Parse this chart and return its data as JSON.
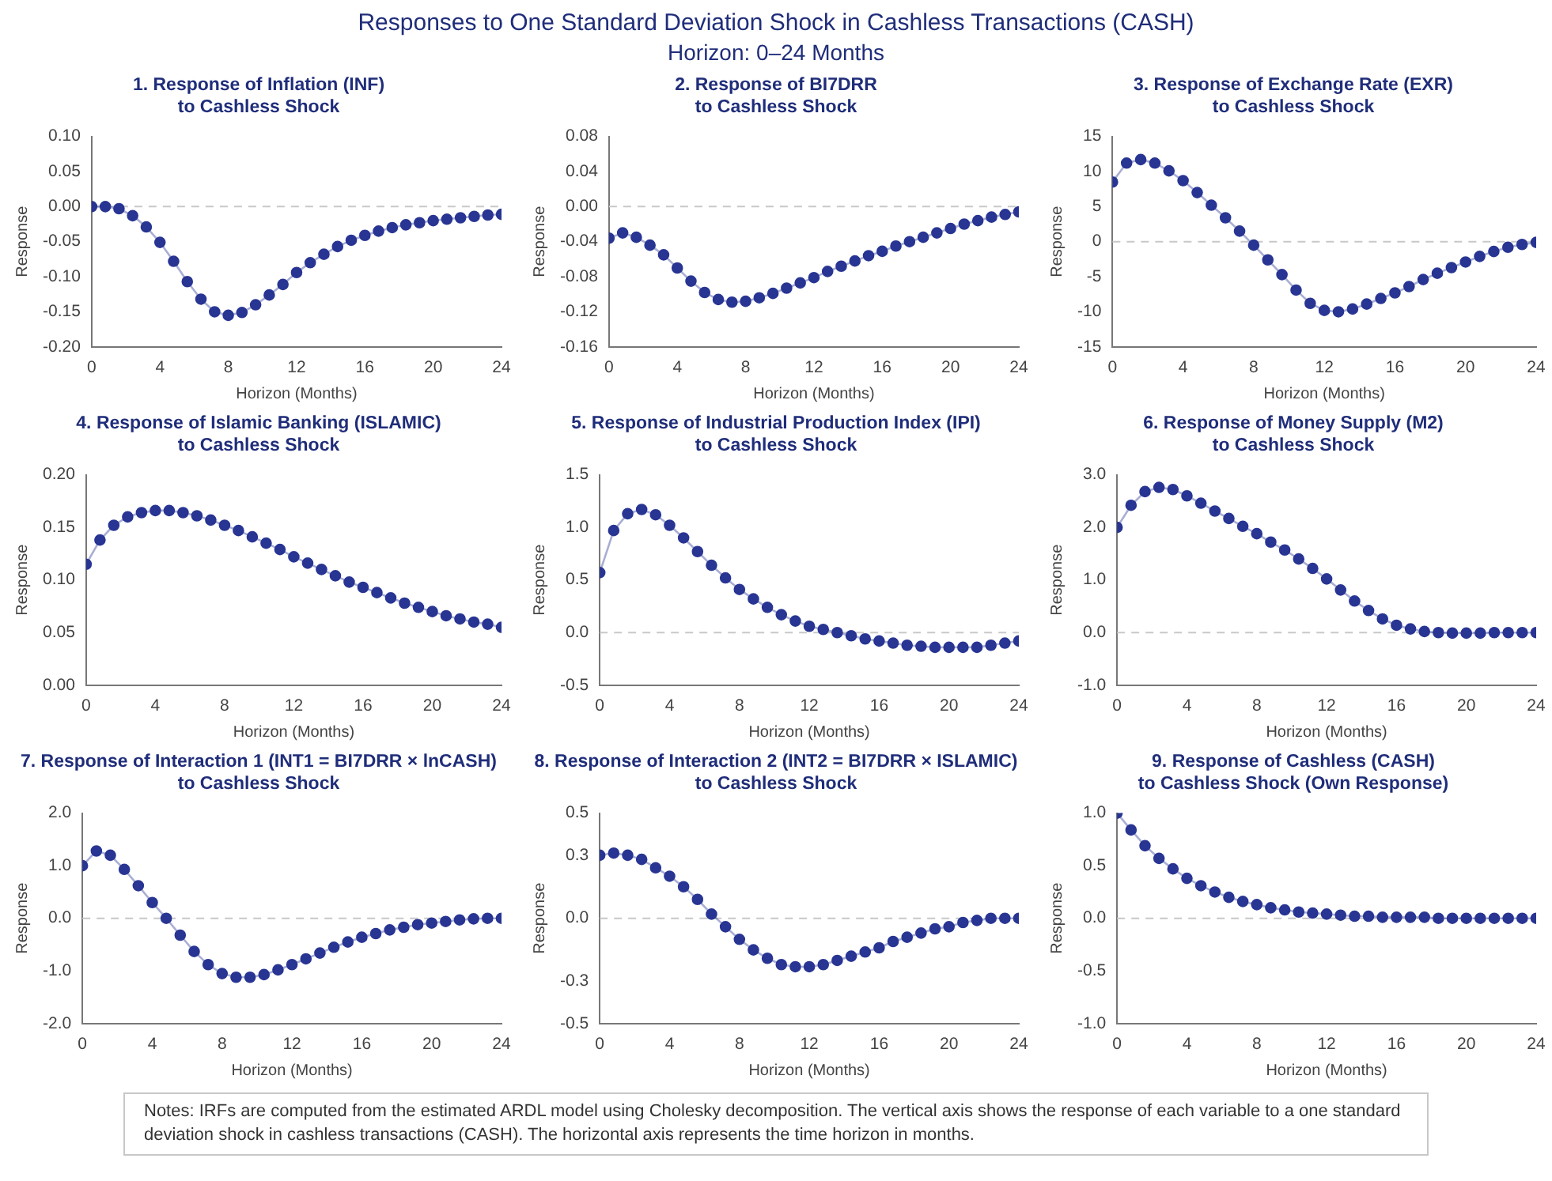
{
  "chart_data": [
    {
      "type": "other",
      "title": "Responses to One Standard Deviation Shock in Cashless Transactions (CASH)",
      "subtitle": "Horizon: 0–24 Months",
      "annotations": [
        "Notes: IRFs are computed from the estimated ARDL model using Cholesky decomposition. The vertical axis shows the response of each variable to a one standard deviation shock in cashless transactions (CASH). The horizontal axis represents the time horizon in months."
      ]
    },
    {
      "type": "line",
      "title": "1. Response of Inflation (INF)\nto Cashless Shock",
      "xlabel": "Horizon (Months)",
      "ylabel": "Response",
      "marker": "circle",
      "grid": false,
      "xlim": [
        0,
        24
      ],
      "xticks": [
        0,
        4,
        8,
        12,
        16,
        20,
        24
      ],
      "ylim": [
        -0.2,
        0.1
      ],
      "yticks": [
        {
          "value": -0.2,
          "label": "-0.20"
        },
        {
          "value": -0.15,
          "label": "-0.15"
        },
        {
          "value": -0.1,
          "label": "-0.10"
        },
        {
          "value": -0.05,
          "label": "-0.05"
        },
        {
          "value": 0,
          "label": "0.00"
        },
        {
          "value": 0.05,
          "label": "0.05"
        },
        {
          "value": 0.1,
          "label": "0.10"
        }
      ],
      "ref_lines": [
        {
          "axis": "y",
          "value": 0,
          "label": null,
          "color": "#c8c8c8",
          "line_style": "dashed"
        }
      ],
      "x": [
        0,
        0.8,
        1.6,
        2.4,
        3.2,
        4,
        4.8,
        5.6,
        6.4,
        7.2,
        8,
        8.8,
        9.6,
        10.4,
        11.2,
        12,
        12.8,
        13.6,
        14.4,
        15.2,
        16,
        16.8,
        17.6,
        18.4,
        19.2,
        20,
        20.8,
        21.6,
        22.4,
        23.2,
        24
      ],
      "series": [
        {
          "color": "#283593",
          "values": [
            0,
            0,
            -0.003,
            -0.013,
            -0.029,
            -0.051,
            -0.078,
            -0.107,
            -0.132,
            -0.15,
            -0.155,
            -0.151,
            -0.14,
            -0.126,
            -0.111,
            -0.094,
            -0.08,
            -0.068,
            -0.057,
            -0.048,
            -0.041,
            -0.035,
            -0.03,
            -0.026,
            -0.023,
            -0.02,
            -0.018,
            -0.016,
            -0.014,
            -0.012,
            -0.011
          ]
        }
      ]
    },
    {
      "type": "line",
      "title": "2. Response of BI7DRR\nto Cashless Shock",
      "xlabel": "Horizon (Months)",
      "ylabel": "Response",
      "marker": "circle",
      "grid": false,
      "xlim": [
        0,
        24
      ],
      "xticks": [
        0,
        4,
        8,
        12,
        16,
        20,
        24
      ],
      "ylim": [
        -0.16,
        0.08
      ],
      "yticks": [
        {
          "value": -0.16,
          "label": "-0.16"
        },
        {
          "value": -0.12,
          "label": "-0.12"
        },
        {
          "value": -0.08,
          "label": "-0.08"
        },
        {
          "value": -0.04,
          "label": "-0.04"
        },
        {
          "value": 0,
          "label": "0.00"
        },
        {
          "value": 0.04,
          "label": "0.04"
        },
        {
          "value": 0.08,
          "label": "0.08"
        }
      ],
      "ref_lines": [
        {
          "axis": "y",
          "value": 0,
          "label": null,
          "color": "#c8c8c8",
          "line_style": "dashed"
        }
      ],
      "x": [
        0,
        0.8,
        1.6,
        2.4,
        3.2,
        4,
        4.8,
        5.6,
        6.4,
        7.2,
        8,
        8.8,
        9.6,
        10.4,
        11.2,
        12,
        12.8,
        13.6,
        14.4,
        15.2,
        16,
        16.8,
        17.6,
        18.4,
        19.2,
        20,
        20.8,
        21.6,
        22.4,
        23.2,
        24
      ],
      "series": [
        {
          "color": "#283593",
          "values": [
            -0.036,
            -0.03,
            -0.035,
            -0.044,
            -0.055,
            -0.07,
            -0.085,
            -0.098,
            -0.106,
            -0.109,
            -0.108,
            -0.104,
            -0.099,
            -0.093,
            -0.087,
            -0.081,
            -0.074,
            -0.068,
            -0.062,
            -0.056,
            -0.051,
            -0.045,
            -0.04,
            -0.035,
            -0.03,
            -0.025,
            -0.02,
            -0.016,
            -0.012,
            -0.009,
            -0.006
          ]
        }
      ]
    },
    {
      "type": "line",
      "title": "3. Response of Exchange Rate (EXR)\nto Cashless Shock",
      "xlabel": "Horizon (Months)",
      "ylabel": "Response",
      "marker": "circle",
      "grid": false,
      "xlim": [
        0,
        24
      ],
      "xticks": [
        0,
        4,
        8,
        12,
        16,
        20,
        24
      ],
      "ylim": [
        -15,
        15
      ],
      "yticks": [
        -15,
        -10,
        -5,
        0,
        5,
        10,
        15
      ],
      "ref_lines": [
        {
          "axis": "y",
          "value": 0,
          "label": null,
          "color": "#c8c8c8",
          "line_style": "dashed"
        }
      ],
      "x": [
        0,
        0.8,
        1.6,
        2.4,
        3.2,
        4,
        4.8,
        5.6,
        6.4,
        7.2,
        8,
        8.8,
        9.6,
        10.4,
        11.2,
        12,
        12.8,
        13.6,
        14.4,
        15.2,
        16,
        16.8,
        17.6,
        18.4,
        19.2,
        20,
        20.8,
        21.6,
        22.4,
        23.2,
        24
      ],
      "series": [
        {
          "color": "#283593",
          "values": [
            8.5,
            11.2,
            11.7,
            11.2,
            10.1,
            8.7,
            7.0,
            5.2,
            3.4,
            1.5,
            -0.5,
            -2.6,
            -4.7,
            -6.9,
            -8.8,
            -9.8,
            -10.0,
            -9.6,
            -8.9,
            -8.1,
            -7.3,
            -6.4,
            -5.4,
            -4.5,
            -3.7,
            -2.9,
            -2.1,
            -1.4,
            -0.8,
            -0.4,
            -0.1
          ]
        }
      ]
    },
    {
      "type": "line",
      "title": "4. Response of Islamic Banking (ISLAMIC)\nto Cashless Shock",
      "xlabel": "Horizon (Months)",
      "ylabel": "Response",
      "marker": "circle",
      "grid": false,
      "xlim": [
        0,
        24
      ],
      "xticks": [
        0,
        4,
        8,
        12,
        16,
        20,
        24
      ],
      "ylim": [
        0,
        0.2
      ],
      "yticks": [
        {
          "value": 0,
          "label": "0.00"
        },
        {
          "value": 0.05,
          "label": "0.05"
        },
        {
          "value": 0.1,
          "label": "0.10"
        },
        {
          "value": 0.15,
          "label": "0.15"
        },
        {
          "value": 0.2,
          "label": "0.20"
        }
      ],
      "x": [
        0,
        0.8,
        1.6,
        2.4,
        3.2,
        4,
        4.8,
        5.6,
        6.4,
        7.2,
        8,
        8.8,
        9.6,
        10.4,
        11.2,
        12,
        12.8,
        13.6,
        14.4,
        15.2,
        16,
        16.8,
        17.6,
        18.4,
        19.2,
        20,
        20.8,
        21.6,
        22.4,
        23.2,
        24
      ],
      "series": [
        {
          "color": "#283593",
          "values": [
            0.115,
            0.138,
            0.152,
            0.16,
            0.164,
            0.166,
            0.166,
            0.164,
            0.161,
            0.157,
            0.152,
            0.147,
            0.141,
            0.135,
            0.129,
            0.122,
            0.116,
            0.11,
            0.104,
            0.098,
            0.093,
            0.088,
            0.083,
            0.078,
            0.074,
            0.07,
            0.066,
            0.063,
            0.06,
            0.058,
            0.055
          ]
        }
      ]
    },
    {
      "type": "line",
      "title": "5. Response of Industrial Production Index (IPI)\nto Cashless Shock",
      "xlabel": "Horizon (Months)",
      "ylabel": "Response",
      "marker": "circle",
      "grid": false,
      "xlim": [
        0,
        24
      ],
      "xticks": [
        0,
        4,
        8,
        12,
        16,
        20,
        24
      ],
      "ylim": [
        -0.5,
        1.5
      ],
      "yticks": [
        -0.5,
        {
          "value": 0,
          "label": "0.0"
        },
        0.5,
        {
          "value": 1,
          "label": "1.0"
        },
        1.5
      ],
      "ref_lines": [
        {
          "axis": "y",
          "value": 0,
          "label": null,
          "color": "#c8c8c8",
          "line_style": "dashed"
        }
      ],
      "x": [
        0,
        0.8,
        1.6,
        2.4,
        3.2,
        4,
        4.8,
        5.6,
        6.4,
        7.2,
        8,
        8.8,
        9.6,
        10.4,
        11.2,
        12,
        12.8,
        13.6,
        14.4,
        15.2,
        16,
        16.8,
        17.6,
        18.4,
        19.2,
        20,
        20.8,
        21.6,
        22.4,
        23.2,
        24
      ],
      "series": [
        {
          "color": "#283593",
          "values": [
            0.57,
            0.97,
            1.13,
            1.17,
            1.12,
            1.02,
            0.9,
            0.77,
            0.64,
            0.52,
            0.41,
            0.32,
            0.24,
            0.17,
            0.11,
            0.06,
            0.03,
            0.0,
            -0.03,
            -0.06,
            -0.08,
            -0.1,
            -0.12,
            -0.13,
            -0.14,
            -0.14,
            -0.14,
            -0.14,
            -0.12,
            -0.1,
            -0.08
          ]
        }
      ]
    },
    {
      "type": "line",
      "title": "6. Response of Money Supply (M2)\nto Cashless Shock",
      "xlabel": "Horizon (Months)",
      "ylabel": "Response",
      "marker": "circle",
      "grid": false,
      "xlim": [
        0,
        24
      ],
      "xticks": [
        0,
        4,
        8,
        12,
        16,
        20,
        24
      ],
      "ylim": [
        -1,
        3
      ],
      "yticks": [
        {
          "value": -1,
          "label": "-1.0"
        },
        {
          "value": 0,
          "label": "0.0"
        },
        {
          "value": 1,
          "label": "1.0"
        },
        {
          "value": 2,
          "label": "2.0"
        },
        {
          "value": 3,
          "label": "3.0"
        }
      ],
      "ref_lines": [
        {
          "axis": "y",
          "value": 0,
          "label": null,
          "color": "#c8c8c8",
          "line_style": "dashed"
        }
      ],
      "x": [
        0,
        0.8,
        1.6,
        2.4,
        3.2,
        4,
        4.8,
        5.6,
        6.4,
        7.2,
        8,
        8.8,
        9.6,
        10.4,
        11.2,
        12,
        12.8,
        13.6,
        14.4,
        15.2,
        16,
        16.8,
        17.6,
        18.4,
        19.2,
        20,
        20.8,
        21.6,
        22.4,
        23.2,
        24
      ],
      "series": [
        {
          "color": "#283593",
          "values": [
            2.0,
            2.42,
            2.68,
            2.76,
            2.72,
            2.6,
            2.46,
            2.31,
            2.17,
            2.02,
            1.88,
            1.72,
            1.57,
            1.4,
            1.22,
            1.02,
            0.81,
            0.6,
            0.42,
            0.26,
            0.14,
            0.07,
            0.02,
            0.0,
            -0.01,
            -0.01,
            -0.01,
            0.0,
            0.0,
            0.0,
            0.0
          ]
        }
      ]
    },
    {
      "type": "line",
      "title": "7. Response of Interaction 1 (INT1 = BI7DRR × lnCASH)\nto Cashless Shock",
      "xlabel": "Horizon (Months)",
      "ylabel": "Response",
      "marker": "circle",
      "grid": false,
      "xlim": [
        0,
        24
      ],
      "xticks": [
        0,
        4,
        8,
        12,
        16,
        20,
        24
      ],
      "ylim": [
        -2,
        2
      ],
      "yticks": [
        {
          "value": -2,
          "label": "-2.0"
        },
        {
          "value": -1,
          "label": "-1.0"
        },
        {
          "value": 0,
          "label": "0.0"
        },
        {
          "value": 1,
          "label": "1.0"
        },
        {
          "value": 2,
          "label": "2.0"
        }
      ],
      "ref_lines": [
        {
          "axis": "y",
          "value": 0,
          "label": null,
          "color": "#c8c8c8",
          "line_style": "dashed"
        }
      ],
      "x": [
        0,
        0.8,
        1.6,
        2.4,
        3.2,
        4,
        4.8,
        5.6,
        6.4,
        7.2,
        8,
        8.8,
        9.6,
        10.4,
        11.2,
        12,
        12.8,
        13.6,
        14.4,
        15.2,
        16,
        16.8,
        17.6,
        18.4,
        19.2,
        20,
        20.8,
        21.6,
        22.4,
        23.2,
        24
      ],
      "series": [
        {
          "color": "#283593",
          "values": [
            1.0,
            1.28,
            1.2,
            0.93,
            0.62,
            0.3,
            0.0,
            -0.32,
            -0.63,
            -0.88,
            -1.05,
            -1.12,
            -1.12,
            -1.07,
            -0.98,
            -0.88,
            -0.77,
            -0.66,
            -0.55,
            -0.45,
            -0.36,
            -0.29,
            -0.22,
            -0.17,
            -0.12,
            -0.09,
            -0.06,
            -0.03,
            -0.01,
            0.0,
            0.0
          ]
        }
      ]
    },
    {
      "type": "line",
      "title": "8. Response of Interaction 2 (INT2 = BI7DRR × ISLAMIC)\nto Cashless Shock",
      "xlabel": "Horizon (Months)",
      "ylabel": "Response",
      "marker": "circle",
      "grid": false,
      "xlim": [
        0,
        24
      ],
      "xticks": [
        0,
        4,
        8,
        12,
        16,
        20,
        24
      ],
      "ylim": [
        -0.5,
        0.5
      ],
      "yticks": [
        -0.5,
        -0.3,
        {
          "value": 0,
          "label": "0.0"
        },
        0.3,
        0.5
      ],
      "ref_lines": [
        {
          "axis": "y",
          "value": 0,
          "label": null,
          "color": "#c8c8c8",
          "line_style": "dashed"
        }
      ],
      "x": [
        0,
        0.8,
        1.6,
        2.4,
        3.2,
        4,
        4.8,
        5.6,
        6.4,
        7.2,
        8,
        8.8,
        9.6,
        10.4,
        11.2,
        12,
        12.8,
        13.6,
        14.4,
        15.2,
        16,
        16.8,
        17.6,
        18.4,
        19.2,
        20,
        20.8,
        21.6,
        22.4,
        23.2,
        24
      ],
      "series": [
        {
          "color": "#283593",
          "values": [
            0.3,
            0.31,
            0.3,
            0.28,
            0.24,
            0.2,
            0.15,
            0.09,
            0.02,
            -0.04,
            -0.1,
            -0.15,
            -0.19,
            -0.22,
            -0.23,
            -0.23,
            -0.22,
            -0.2,
            -0.18,
            -0.16,
            -0.14,
            -0.11,
            -0.09,
            -0.07,
            -0.05,
            -0.04,
            -0.02,
            -0.01,
            0.0,
            0.0,
            0.0
          ]
        }
      ]
    },
    {
      "type": "line",
      "title": "9. Response of Cashless (CASH)\nto Cashless Shock (Own Response)",
      "xlabel": "Horizon (Months)",
      "ylabel": "Response",
      "marker": "circle",
      "grid": false,
      "xlim": [
        0,
        24
      ],
      "xticks": [
        0,
        4,
        8,
        12,
        16,
        20,
        24
      ],
      "ylim": [
        -1,
        1
      ],
      "yticks": [
        {
          "value": -1,
          "label": "-1.0"
        },
        -0.5,
        {
          "value": 0,
          "label": "0.0"
        },
        0.5,
        {
          "value": 1,
          "label": "1.0"
        }
      ],
      "ref_lines": [
        {
          "axis": "y",
          "value": 0,
          "label": null,
          "color": "#c8c8c8",
          "line_style": "dashed"
        }
      ],
      "x": [
        0,
        0.8,
        1.6,
        2.4,
        3.2,
        4,
        4.8,
        5.6,
        6.4,
        7.2,
        8,
        8.8,
        9.6,
        10.4,
        11.2,
        12,
        12.8,
        13.6,
        14.4,
        15.2,
        16,
        16.8,
        17.6,
        18.4,
        19.2,
        20,
        20.8,
        21.6,
        22.4,
        23.2,
        24
      ],
      "series": [
        {
          "color": "#283593",
          "values": [
            1.0,
            0.84,
            0.69,
            0.57,
            0.47,
            0.38,
            0.31,
            0.25,
            0.2,
            0.16,
            0.13,
            0.1,
            0.08,
            0.06,
            0.05,
            0.04,
            0.03,
            0.02,
            0.02,
            0.01,
            0.01,
            0.01,
            0.01,
            0,
            0,
            0,
            0,
            0,
            0,
            0,
            0
          ]
        }
      ]
    }
  ]
}
